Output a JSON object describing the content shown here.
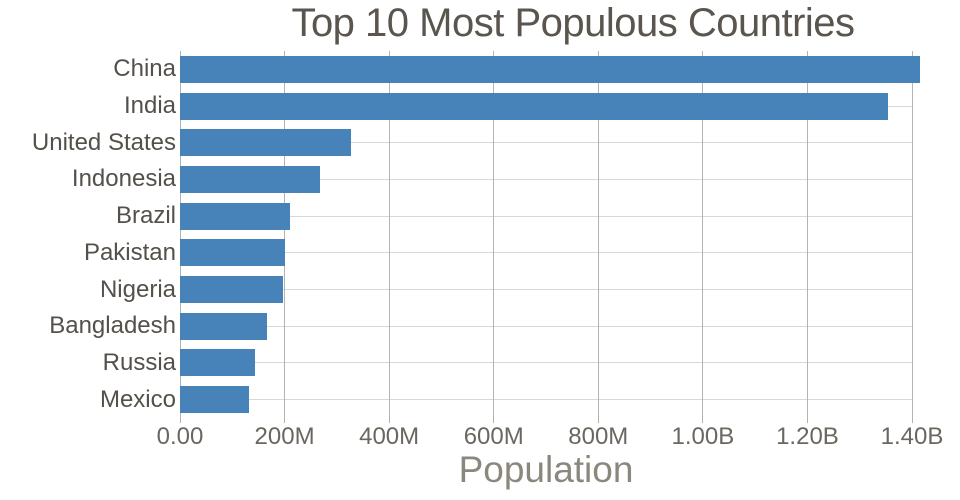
{
  "chart_data": {
    "type": "bar",
    "orientation": "horizontal",
    "title": "Top 10 Most Populous Countries",
    "xlabel": "Population",
    "ylabel": "",
    "categories": [
      "China",
      "India",
      "United States",
      "Indonesia",
      "Brazil",
      "Pakistan",
      "Nigeria",
      "Bangladesh",
      "Russia",
      "Mexico"
    ],
    "values_millions": [
      1415,
      1354,
      327,
      267,
      211,
      201,
      196,
      166,
      144,
      131
    ],
    "xlim_millions": [
      0,
      1465
    ],
    "xticks": [
      {
        "value_millions": 0,
        "label": "0.00"
      },
      {
        "value_millions": 200,
        "label": "200M"
      },
      {
        "value_millions": 400,
        "label": "400M"
      },
      {
        "value_millions": 600,
        "label": "600M"
      },
      {
        "value_millions": 800,
        "label": "800M"
      },
      {
        "value_millions": 1000,
        "label": "1.00B"
      },
      {
        "value_millions": 1200,
        "label": "1.20B"
      },
      {
        "value_millions": 1400,
        "label": "1.40B"
      }
    ],
    "grid": true,
    "legend": false,
    "colors": {
      "bar": "#4783b8",
      "grid_horizontal": "#dad8d4",
      "grid_vertical": "#b5b3af",
      "title_text": "#5a564f",
      "y_tick_text": "#54504a",
      "x_tick_text": "#6b665f",
      "axis_title_text": "#8c877d",
      "background": "#ffffff"
    }
  }
}
